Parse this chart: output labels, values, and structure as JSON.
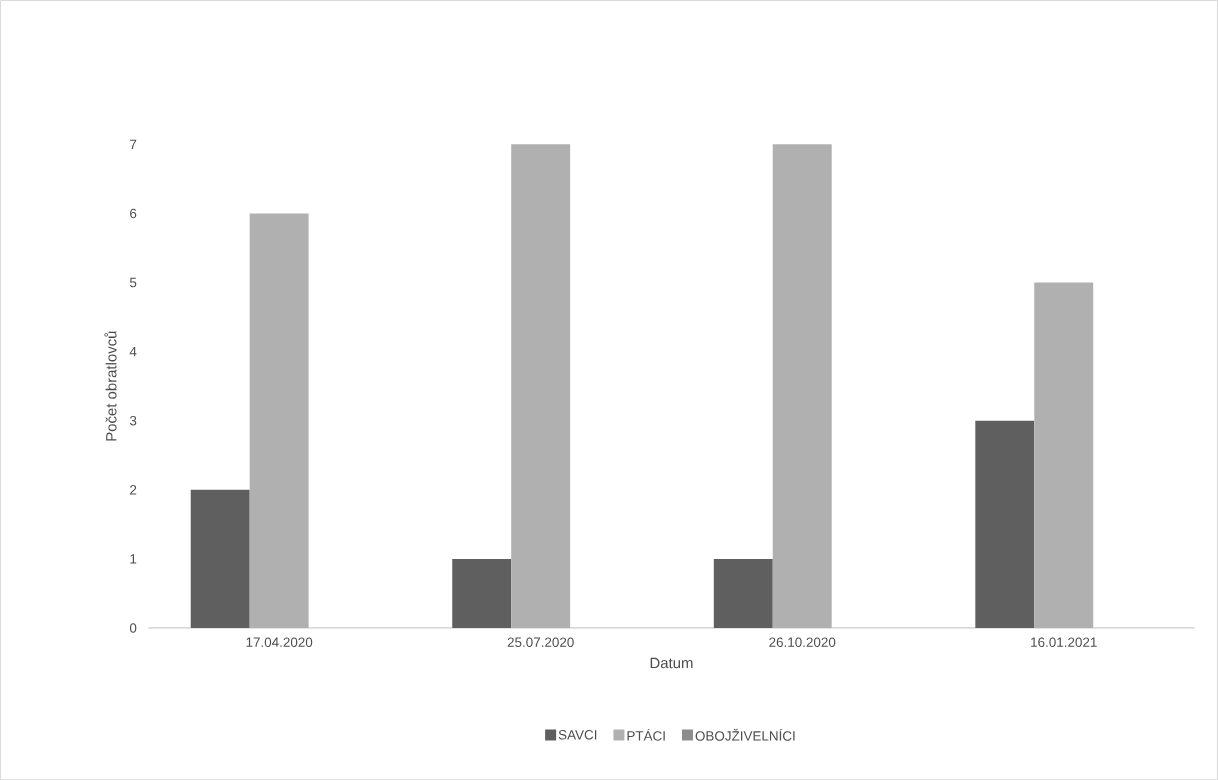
{
  "chart_data": {
    "type": "bar",
    "xlabel": "Datum",
    "ylabel": "Počet obratlovců",
    "categories": [
      "17.04.2020",
      "25.07.2020",
      "26.10.2020",
      "16.01.2021"
    ],
    "series": [
      {
        "name": "SAVCI",
        "color": "#5f5f5f",
        "values": [
          2,
          1,
          1,
          3
        ]
      },
      {
        "name": "PTÁCI",
        "color": "#b0b0b0",
        "values": [
          6,
          7,
          7,
          5
        ]
      },
      {
        "name": "OBOJŽIVELNÍCI",
        "color": "#8c8c8c",
        "values": [
          0,
          0,
          0,
          0
        ]
      }
    ],
    "ylim": [
      0,
      7
    ],
    "yticks": [
      0,
      1,
      2,
      3,
      4,
      5,
      6,
      7
    ],
    "grid": false,
    "legend": "bottom"
  }
}
